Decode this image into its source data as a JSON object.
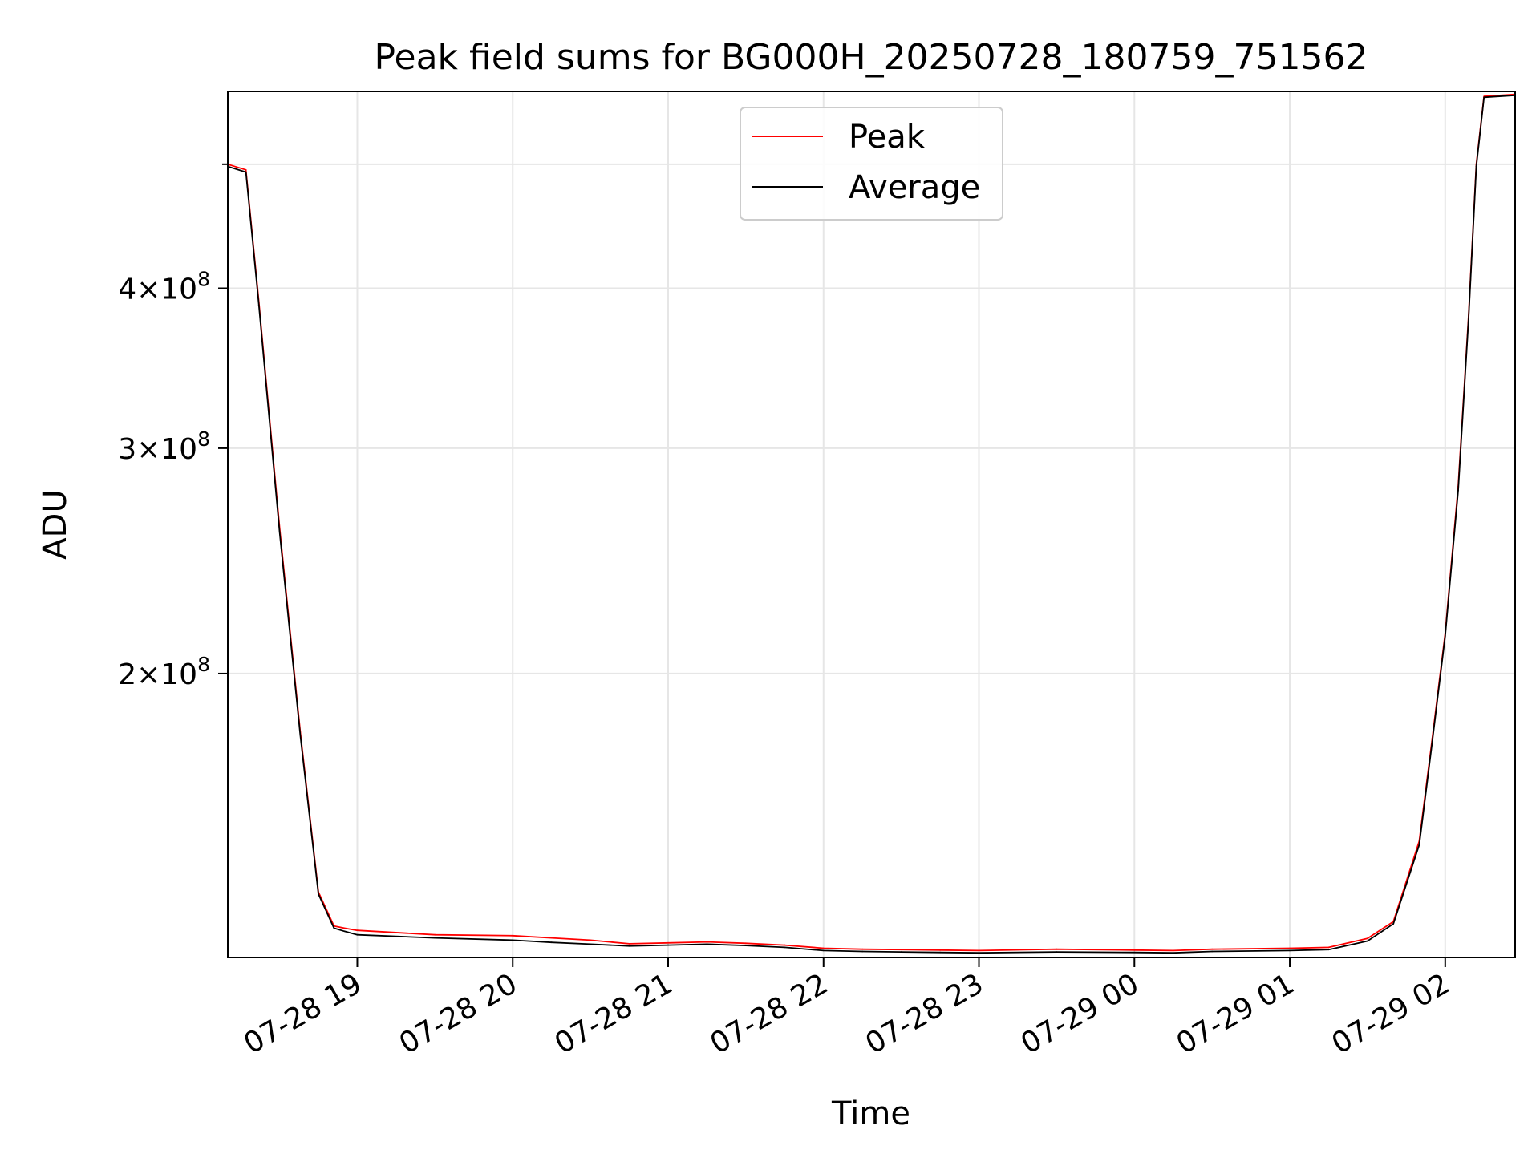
{
  "chart_data": {
    "type": "line",
    "title": "Peak field sums for BG000H_20250728_180759_751562",
    "xlabel": "Time",
    "ylabel": "ADU",
    "yscale": "log",
    "grid": true,
    "legend_position": "top-center",
    "xlim": [
      "2025-07-28 18:10",
      "2025-07-29 02:27"
    ],
    "ylim": [
      120000000,
      570000000
    ],
    "x_ticks": [
      {
        "t": "2025-07-28 19:00",
        "label": "07-28 19"
      },
      {
        "t": "2025-07-28 20:00",
        "label": "07-28 20"
      },
      {
        "t": "2025-07-28 21:00",
        "label": "07-28 21"
      },
      {
        "t": "2025-07-28 22:00",
        "label": "07-28 22"
      },
      {
        "t": "2025-07-28 23:00",
        "label": "07-28 23"
      },
      {
        "t": "2025-07-29 00:00",
        "label": "07-29 00"
      },
      {
        "t": "2025-07-29 01:00",
        "label": "07-29 01"
      },
      {
        "t": "2025-07-29 02:00",
        "label": "07-29 02"
      }
    ],
    "y_ticks": [
      {
        "value": 200000000,
        "mantissa": "2",
        "base": "10",
        "exp": "8"
      },
      {
        "value": 300000000,
        "mantissa": "3",
        "base": "10",
        "exp": "8"
      },
      {
        "value": 400000000,
        "mantissa": "4",
        "base": "10",
        "exp": "8"
      }
    ],
    "series": [
      {
        "name": "Peak",
        "color": "#ff0000",
        "x": [
          "2025-07-28 18:10",
          "2025-07-28 18:17",
          "2025-07-28 18:22",
          "2025-07-28 18:30",
          "2025-07-28 18:38",
          "2025-07-28 18:45",
          "2025-07-28 18:51",
          "2025-07-28 18:55",
          "2025-07-28 19:00",
          "2025-07-28 19:30",
          "2025-07-28 20:00",
          "2025-07-28 20:15",
          "2025-07-28 20:30",
          "2025-07-28 20:45",
          "2025-07-28 21:00",
          "2025-07-28 21:15",
          "2025-07-28 21:30",
          "2025-07-28 21:45",
          "2025-07-28 22:00",
          "2025-07-28 22:15",
          "2025-07-28 22:30",
          "2025-07-28 22:45",
          "2025-07-28 23:00",
          "2025-07-28 23:30",
          "2025-07-29 00:00",
          "2025-07-29 00:15",
          "2025-07-29 00:30",
          "2025-07-29 01:00",
          "2025-07-29 01:15",
          "2025-07-29 01:30",
          "2025-07-29 01:40",
          "2025-07-29 01:50",
          "2025-07-29 01:55",
          "2025-07-29 02:00",
          "2025-07-29 02:05",
          "2025-07-29 02:09",
          "2025-07-29 02:12",
          "2025-07-29 02:15",
          "2025-07-29 02:27"
        ],
        "y": [
          500000000,
          495000000,
          390000000,
          260000000,
          180000000,
          135000000,
          127000000,
          126500000,
          126000000,
          125000000,
          124800000,
          124300000,
          123800000,
          123000000,
          123200000,
          123400000,
          123100000,
          122700000,
          122000000,
          121800000,
          121700000,
          121600000,
          121500000,
          121800000,
          121600000,
          121500000,
          121800000,
          122000000,
          122200000,
          124200000,
          128000000,
          148000000,
          178000000,
          215000000,
          280000000,
          380000000,
          500000000,
          565000000,
          567000000
        ]
      },
      {
        "name": "Average",
        "color": "#000000",
        "x": [
          "2025-07-28 18:10",
          "2025-07-28 18:17",
          "2025-07-28 18:22",
          "2025-07-28 18:30",
          "2025-07-28 18:38",
          "2025-07-28 18:45",
          "2025-07-28 18:51",
          "2025-07-28 18:55",
          "2025-07-28 19:00",
          "2025-07-28 19:30",
          "2025-07-28 20:00",
          "2025-07-28 20:15",
          "2025-07-28 20:30",
          "2025-07-28 20:45",
          "2025-07-28 21:00",
          "2025-07-28 21:15",
          "2025-07-28 21:30",
          "2025-07-28 21:45",
          "2025-07-28 22:00",
          "2025-07-28 22:15",
          "2025-07-28 22:30",
          "2025-07-28 22:45",
          "2025-07-28 23:00",
          "2025-07-28 23:30",
          "2025-07-29 00:00",
          "2025-07-29 00:15",
          "2025-07-29 00:30",
          "2025-07-29 01:00",
          "2025-07-29 01:15",
          "2025-07-29 01:30",
          "2025-07-29 01:40",
          "2025-07-29 01:50",
          "2025-07-29 01:55",
          "2025-07-29 02:00",
          "2025-07-29 02:05",
          "2025-07-29 02:09",
          "2025-07-29 02:12",
          "2025-07-29 02:15",
          "2025-07-29 02:27"
        ],
        "y": [
          498000000,
          493000000,
          388000000,
          258000000,
          179000000,
          134500000,
          126500000,
          125800000,
          125000000,
          124300000,
          123800000,
          123300000,
          122900000,
          122500000,
          122700000,
          122900000,
          122600000,
          122200000,
          121500000,
          121300000,
          121200000,
          121100000,
          121000000,
          121200000,
          121100000,
          121000000,
          121300000,
          121500000,
          121700000,
          123600000,
          127500000,
          147000000,
          177000000,
          214000000,
          278000000,
          378000000,
          498000000,
          564000000,
          566000000
        ]
      }
    ]
  }
}
